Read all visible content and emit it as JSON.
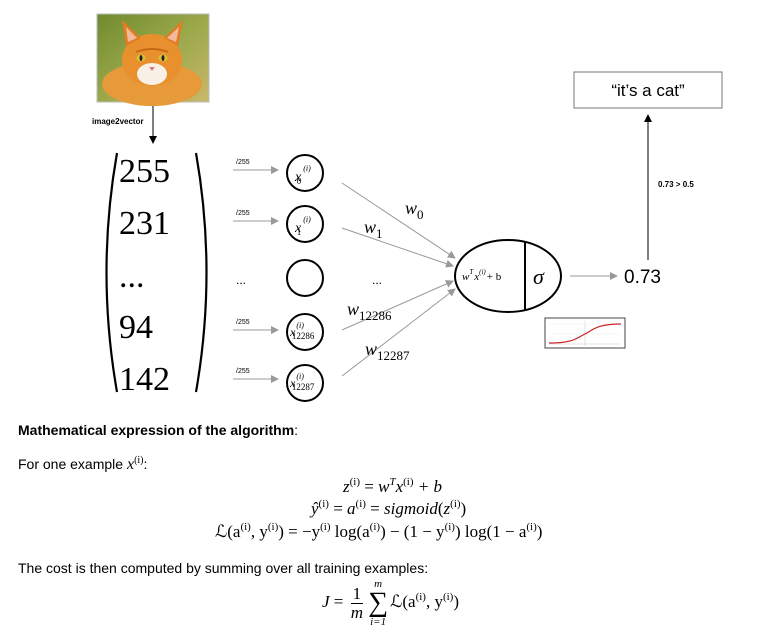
{
  "diagram": {
    "converter_label": "image2vector",
    "vector_values": [
      "255",
      "231",
      "...",
      "94",
      "142"
    ],
    "normalize_labels": [
      "/255",
      "/255",
      "...",
      "/255",
      "/255"
    ],
    "input_nodes": [
      {
        "base": "x",
        "sup": "(i)",
        "sub": "0"
      },
      {
        "base": "x",
        "sup": "(i)",
        "sub": "1"
      },
      {
        "base": "",
        "sup": "",
        "sub": ""
      },
      {
        "base": "x",
        "sup": "(i)",
        "sub": "12286"
      },
      {
        "base": "x",
        "sup": "(i)",
        "sub": "12287"
      }
    ],
    "weights": [
      {
        "base": "w",
        "sub": "0"
      },
      {
        "base": "w",
        "sub": "1"
      },
      {
        "base": "...",
        "sub": ""
      },
      {
        "base": "w",
        "sub": "12286"
      },
      {
        "base": "w",
        "sub": "12287"
      }
    ],
    "neuron": {
      "linear": "w",
      "linear_sup": "T",
      "linear_x": "x",
      "linear_x_sup": "(i)",
      "linear_tail": "+ b",
      "activation": "σ"
    },
    "output_value": "0.73",
    "threshold_label": "0.73 > 0.5",
    "prediction": "“it’s a cat”"
  },
  "text": {
    "heading": "Mathematical expression of the algorithm",
    "heading_suffix": ":",
    "one_example_prefix": "For one example ",
    "one_example_var": "x",
    "one_example_sup": "(i)",
    "one_example_suffix": ":",
    "cost_sentence": "The cost is then computed by summing over all training examples:"
  },
  "equations": {
    "eq1": {
      "lhs": "z",
      "lhs_sup": "(i)",
      "rhs_w": "w",
      "rhs_w_sup": "T",
      "rhs_x": "x",
      "rhs_x_sup": "(i)",
      "rhs_tail": " + b"
    },
    "eq2": {
      "lhs": "ŷ",
      "lhs_sup": "(i)",
      "mid": "a",
      "mid_sup": "(i)",
      "fn": "sigmoid",
      "arg": "z",
      "arg_sup": "(i)"
    },
    "eq3": {
      "lhs": "ℒ(a",
      "lhs_sup": "(i)",
      "lhs2": ", y",
      "lhs2_sup": "(i)",
      "rhs": "= −y",
      "rhs_sup": "(i)",
      "rhs2": " log(a",
      "rhs2_sup": "(i)",
      "rhs3": ") − (1 − y",
      "rhs3_sup": "(i)",
      "rhs4": ") log(1 − a",
      "rhs4_sup": "(i)",
      "rhs5": ")"
    },
    "cost": {
      "lhs": "J",
      "num": "1",
      "den": "m",
      "upper": "m",
      "lower": "i=1",
      "body": "ℒ(a",
      "body_sup": "(i)",
      "body2": ", y",
      "body2_sup": "(i)",
      "body3": ")"
    }
  },
  "colors": {
    "line": "#000000",
    "arrow": "#999999",
    "sigmoid_curve": "#cc2222",
    "thumb_border": "#444444"
  }
}
